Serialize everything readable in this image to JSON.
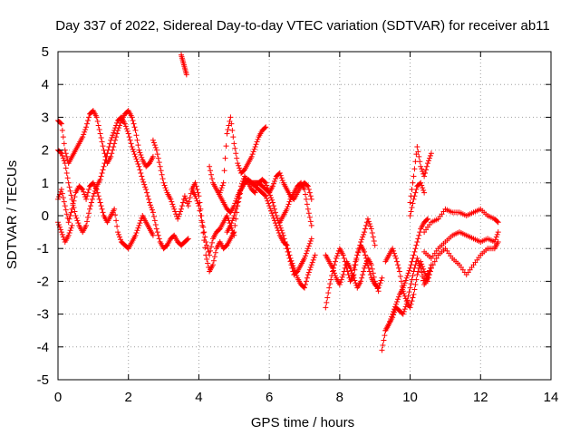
{
  "chart_data": {
    "type": "scatter",
    "title": "Day 337 of 2022, Sidereal Day-to-day VTEC variation (SDTVAR) for receiver ab11",
    "xlabel": "GPS time / hours",
    "ylabel": "SDTVAR / TECUs",
    "xlim": [
      0,
      14
    ],
    "ylim": [
      -5,
      5
    ],
    "xticks": [
      0,
      2,
      4,
      6,
      8,
      10,
      12,
      14
    ],
    "yticks": [
      -5,
      -4,
      -3,
      -2,
      -1,
      0,
      1,
      2,
      3,
      4,
      5
    ],
    "x_tick_labels": [
      "0",
      "2",
      "4",
      "6",
      "8",
      "10",
      "12",
      "14"
    ],
    "y_tick_labels": [
      "-5",
      "-4",
      "-3",
      "-2",
      "-1",
      "0",
      "1",
      "2",
      "3",
      "4",
      "5"
    ],
    "grid": true,
    "marker": "+",
    "color": "#ff0000",
    "series": [
      {
        "name": "track-a",
        "x": [
          0.0,
          0.1,
          0.2,
          0.3,
          0.4,
          0.5,
          0.6,
          0.7,
          0.8,
          0.9,
          1.0,
          1.1,
          1.2,
          1.3,
          1.4,
          1.5,
          1.6,
          1.7,
          1.8,
          1.9,
          2.0,
          2.1,
          2.2,
          2.3,
          2.4,
          2.5,
          2.6,
          2.7
        ],
        "y": [
          2.9,
          2.8,
          2.0,
          1.6,
          1.8,
          2.0,
          2.2,
          2.4,
          2.7,
          3.1,
          3.2,
          3.0,
          2.5,
          2.0,
          1.6,
          1.8,
          2.2,
          2.6,
          2.9,
          3.1,
          3.2,
          3.0,
          2.6,
          2.0,
          1.7,
          1.5,
          1.6,
          1.8
        ]
      },
      {
        "name": "track-b",
        "x": [
          0.0,
          0.1,
          0.2,
          0.3,
          0.4,
          0.5,
          0.6,
          0.7,
          0.8,
          0.9,
          1.0,
          1.1,
          1.2,
          1.3,
          1.4,
          1.5,
          1.6,
          1.7,
          1.8,
          1.9,
          2.0,
          2.1,
          2.2,
          2.3,
          2.4,
          2.5,
          2.6,
          2.7,
          2.8,
          2.9,
          3.0,
          3.1,
          3.2,
          3.3,
          3.4,
          3.5,
          3.6,
          3.7
        ],
        "y": [
          2.0,
          1.9,
          1.6,
          1.0,
          0.5,
          0.0,
          -0.3,
          -0.5,
          -0.3,
          0.2,
          0.6,
          0.9,
          1.1,
          1.5,
          1.9,
          2.3,
          2.6,
          2.9,
          3.0,
          2.8,
          2.5,
          2.1,
          1.8,
          1.5,
          1.1,
          0.8,
          0.4,
          0.1,
          -0.4,
          -0.8,
          -1.0,
          -0.9,
          -0.7,
          -0.6,
          -0.8,
          -0.9,
          -0.8,
          -0.7
        ]
      },
      {
        "name": "track-c",
        "x": [
          0.0,
          0.1,
          0.2,
          0.3,
          0.4,
          0.5,
          0.6,
          0.7,
          0.8,
          0.9,
          1.0,
          1.1,
          1.2,
          1.3,
          1.4,
          1.5,
          1.6,
          1.7,
          1.8,
          1.9,
          2.0,
          2.1,
          2.2,
          2.3,
          2.4,
          2.5,
          2.6,
          2.7
        ],
        "y": [
          0.5,
          0.8,
          0.3,
          -0.2,
          0.2,
          0.7,
          0.9,
          0.8,
          0.5,
          0.9,
          1.0,
          0.8,
          0.4,
          0.0,
          -0.2,
          0.0,
          0.2,
          -0.5,
          -0.8,
          -0.9,
          -1.0,
          -0.8,
          -0.6,
          -0.3,
          0.0,
          -0.2,
          -0.4,
          -0.6
        ]
      },
      {
        "name": "track-d",
        "x": [
          0.0,
          0.1,
          0.2,
          0.3,
          0.4
        ],
        "y": [
          -0.2,
          -0.5,
          -0.8,
          -0.6,
          -0.3
        ]
      },
      {
        "name": "track-e",
        "x": [
          2.7,
          2.8,
          2.9,
          3.0,
          3.1,
          3.2,
          3.3,
          3.4,
          3.5,
          3.6,
          3.7,
          3.8,
          3.9,
          4.0,
          4.1,
          4.2,
          4.3,
          4.4,
          4.5,
          4.6,
          4.7,
          4.8,
          4.9,
          5.0
        ],
        "y": [
          2.3,
          2.0,
          1.5,
          1.0,
          0.7,
          0.5,
          0.2,
          -0.1,
          0.2,
          0.6,
          0.3,
          0.8,
          1.0,
          0.6,
          -0.2,
          -0.8,
          -1.2,
          -0.7,
          -0.5,
          -0.4,
          -0.2,
          0.0,
          -0.3,
          -0.6
        ]
      },
      {
        "name": "track-f",
        "x": [
          3.5,
          3.55,
          3.6,
          3.65
        ],
        "y": [
          4.9,
          4.7,
          4.5,
          4.3
        ]
      },
      {
        "name": "track-g",
        "x": [
          3.8,
          3.9,
          4.0,
          4.1,
          4.2,
          4.3,
          4.4,
          4.5,
          4.6,
          4.7,
          4.8,
          4.9,
          5.0,
          5.1,
          5.2,
          5.3,
          5.4,
          5.5,
          5.6,
          5.7,
          5.8,
          5.9,
          6.0,
          6.1,
          6.2,
          6.3,
          6.4,
          6.5,
          6.6,
          6.7,
          6.8,
          6.9,
          7.0,
          7.1,
          7.2,
          7.3
        ],
        "y": [
          0.8,
          0.6,
          0.3,
          -0.3,
          -1.2,
          -1.7,
          -1.5,
          -1.0,
          -0.8,
          -1.0,
          -0.9,
          -0.7,
          -0.5,
          0.3,
          0.8,
          1.0,
          1.1,
          1.0,
          0.9,
          0.8,
          0.7,
          0.6,
          0.3,
          0.0,
          -0.3,
          -0.6,
          -0.8,
          -0.9,
          -1.3,
          -1.6,
          -1.9,
          -2.1,
          -2.2,
          -1.8,
          -1.5,
          -1.2
        ]
      },
      {
        "name": "track-h",
        "x": [
          4.3,
          4.4,
          4.5,
          4.6,
          4.7,
          4.8,
          4.9,
          5.0,
          5.1,
          5.2,
          5.3,
          5.4,
          5.5,
          5.6,
          5.7,
          5.8,
          5.9,
          6.0,
          6.1,
          6.2,
          6.3,
          6.4,
          6.5,
          6.6,
          6.7,
          6.8,
          6.9,
          7.0,
          7.1,
          7.2
        ],
        "y": [
          1.5,
          1.0,
          0.8,
          0.6,
          0.4,
          0.2,
          0.1,
          0.3,
          0.6,
          0.8,
          1.0,
          1.1,
          1.0,
          1.0,
          1.0,
          0.9,
          0.8,
          0.7,
          0.9,
          1.2,
          1.3,
          1.0,
          0.8,
          0.6,
          0.5,
          0.7,
          0.9,
          1.0,
          0.9,
          0.5
        ]
      },
      {
        "name": "track-i",
        "x": [
          4.6,
          4.7,
          4.8,
          4.9,
          5.0,
          5.1,
          5.2,
          5.3,
          5.4,
          5.5,
          5.6,
          5.7,
          5.8,
          5.9
        ],
        "y": [
          0.7,
          1.0,
          2.5,
          3.0,
          2.2,
          1.6,
          1.3,
          1.4,
          1.6,
          1.8,
          2.1,
          2.4,
          2.6,
          2.7
        ]
      },
      {
        "name": "track-j",
        "x": [
          4.8,
          4.9,
          5.0,
          5.1,
          5.2,
          5.3,
          5.4,
          5.5,
          5.6,
          5.7,
          5.8,
          5.9,
          6.0,
          6.1,
          6.2,
          6.3,
          6.4,
          6.5,
          6.6,
          6.7,
          6.8,
          6.9,
          7.0,
          7.1,
          7.2
        ],
        "y": [
          -0.5,
          -0.3,
          0.0,
          0.4,
          0.9,
          1.2,
          1.0,
          0.8,
          0.7,
          1.0,
          1.1,
          1.0,
          0.7,
          0.4,
          0.0,
          -0.3,
          -0.6,
          -1.0,
          -1.4,
          -1.8,
          -1.7,
          -1.5,
          -1.3,
          -1.0,
          -0.7
        ]
      },
      {
        "name": "track-k",
        "x": [
          6.3,
          6.4,
          6.5,
          6.6,
          6.7,
          6.8,
          6.9,
          7.0,
          7.1,
          7.2
        ],
        "y": [
          -0.2,
          0.0,
          0.2,
          0.5,
          0.7,
          0.9,
          1.0,
          0.8,
          0.2,
          -0.3
        ]
      },
      {
        "name": "track-l",
        "x": [
          7.6,
          7.7,
          7.8,
          7.9,
          8.0,
          8.1,
          8.2,
          8.3,
          8.4,
          8.5,
          8.6,
          8.7,
          8.8,
          8.9,
          9.0
        ],
        "y": [
          -2.8,
          -2.2,
          -1.7,
          -1.3,
          -1.0,
          -1.2,
          -1.6,
          -2.0,
          -1.8,
          -1.2,
          -0.8,
          -0.5,
          -0.1,
          -0.4,
          -0.9
        ]
      },
      {
        "name": "track-m",
        "x": [
          7.6,
          7.7,
          7.8,
          7.9,
          8.0,
          8.1,
          8.2,
          8.3,
          8.4,
          8.5,
          8.6,
          8.7,
          8.8,
          8.9,
          9.0,
          9.1
        ],
        "y": [
          -1.2,
          -1.4,
          -1.6,
          -1.9,
          -2.1,
          -1.8,
          -1.4,
          -1.6,
          -1.9,
          -2.2,
          -2.0,
          -1.6,
          -1.3,
          -1.5,
          -2.0,
          -2.3
        ]
      },
      {
        "name": "track-n",
        "x": [
          8.4,
          8.5,
          8.6,
          8.7,
          8.8,
          8.9,
          9.0,
          9.1,
          9.2
        ],
        "y": [
          -1.6,
          -1.2,
          -0.9,
          -1.1,
          -1.5,
          -1.9,
          -2.1,
          -2.2,
          -1.9
        ]
      },
      {
        "name": "track-o",
        "x": [
          9.2,
          9.3,
          9.4,
          9.5,
          9.6,
          9.7,
          9.8,
          9.9,
          10.0,
          10.1,
          10.2,
          10.3,
          10.4,
          10.5
        ],
        "y": [
          -4.1,
          -3.5,
          -3.3,
          -3.0,
          -2.7,
          -2.4,
          -2.2,
          -1.9,
          -1.6,
          -1.2,
          -0.8,
          -0.4,
          -0.2,
          -0.1
        ]
      },
      {
        "name": "track-p",
        "x": [
          9.3,
          9.4,
          9.5,
          9.6,
          9.7,
          9.8,
          9.9,
          10.0,
          10.1,
          10.2,
          10.3,
          10.4,
          10.5,
          10.6
        ],
        "y": [
          -1.4,
          -1.2,
          -1.0,
          -1.3,
          -1.7,
          -2.3,
          -2.6,
          -2.8,
          -2.4,
          -1.8,
          -1.4,
          -1.7,
          -2.0,
          -1.6
        ]
      },
      {
        "name": "track-q",
        "x": [
          9.3,
          9.4,
          9.5,
          9.6,
          9.7,
          9.8,
          9.9,
          10.0,
          10.1,
          10.2,
          10.3,
          10.4,
          10.5,
          10.6
        ],
        "y": [
          -3.5,
          -3.3,
          -3.1,
          -2.8,
          -2.9,
          -3.0,
          -2.7,
          -2.2,
          -1.7,
          -1.3,
          -1.6,
          -2.1,
          -1.9,
          -1.5
        ]
      },
      {
        "name": "track-r",
        "x": [
          10.0,
          10.1,
          10.2,
          10.3,
          10.4,
          10.5,
          10.6
        ],
        "y": [
          0.4,
          1.2,
          2.1,
          1.5,
          1.2,
          1.6,
          1.9
        ]
      },
      {
        "name": "track-s",
        "x": [
          10.0,
          10.1,
          10.2,
          10.3,
          10.4
        ],
        "y": [
          0.0,
          0.5,
          0.9,
          1.0,
          0.7
        ]
      },
      {
        "name": "track-t",
        "x": [
          10.4,
          10.6,
          10.8,
          11.0,
          11.2,
          11.4,
          11.6,
          11.8,
          12.0,
          12.2,
          12.4,
          12.5
        ],
        "y": [
          -0.5,
          -0.2,
          -0.1,
          0.2,
          0.1,
          0.1,
          0.0,
          0.1,
          0.2,
          0.0,
          -0.1,
          -0.2
        ]
      },
      {
        "name": "track-u",
        "x": [
          10.4,
          10.6,
          10.8,
          11.0,
          11.2,
          11.4,
          11.6,
          11.8,
          12.0,
          12.2,
          12.4,
          12.5
        ],
        "y": [
          -1.1,
          -1.3,
          -1.0,
          -0.8,
          -0.6,
          -0.5,
          -0.6,
          -0.7,
          -0.8,
          -0.7,
          -0.8,
          -0.5
        ]
      },
      {
        "name": "track-v",
        "x": [
          10.4,
          10.6,
          10.8,
          11.0,
          11.2,
          11.4,
          11.6,
          11.8,
          12.0,
          12.2,
          12.4,
          12.5
        ],
        "y": [
          -1.9,
          -1.6,
          -1.2,
          -1.0,
          -1.3,
          -1.5,
          -1.8,
          -1.5,
          -1.2,
          -1.0,
          -1.0,
          -0.8
        ]
      }
    ]
  }
}
